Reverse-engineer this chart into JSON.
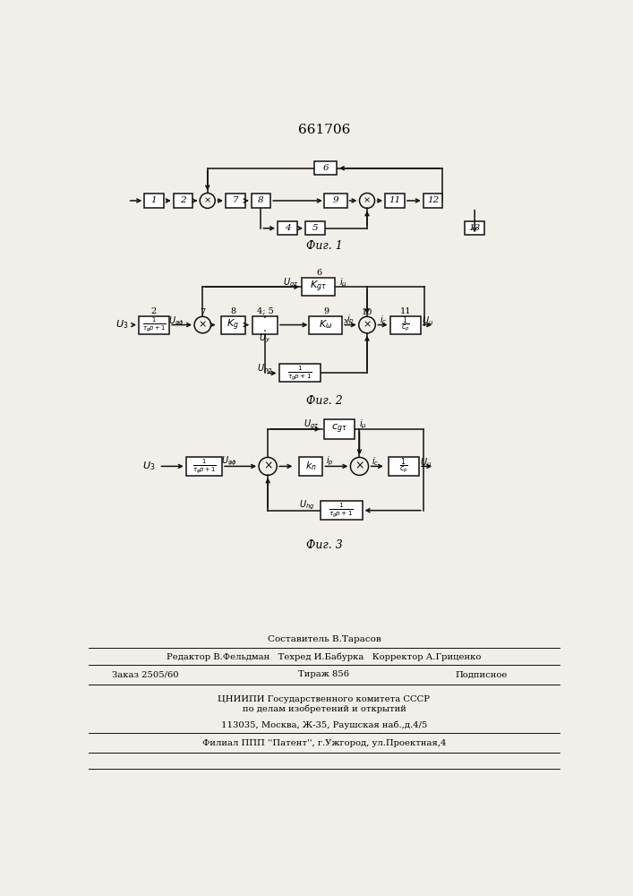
{
  "title": "661706",
  "fig1_label": "Фиг. 1",
  "fig2_label": "Фиг. 2",
  "fig3_label": "Фиг. 3",
  "bg_color": "#f2eeea"
}
